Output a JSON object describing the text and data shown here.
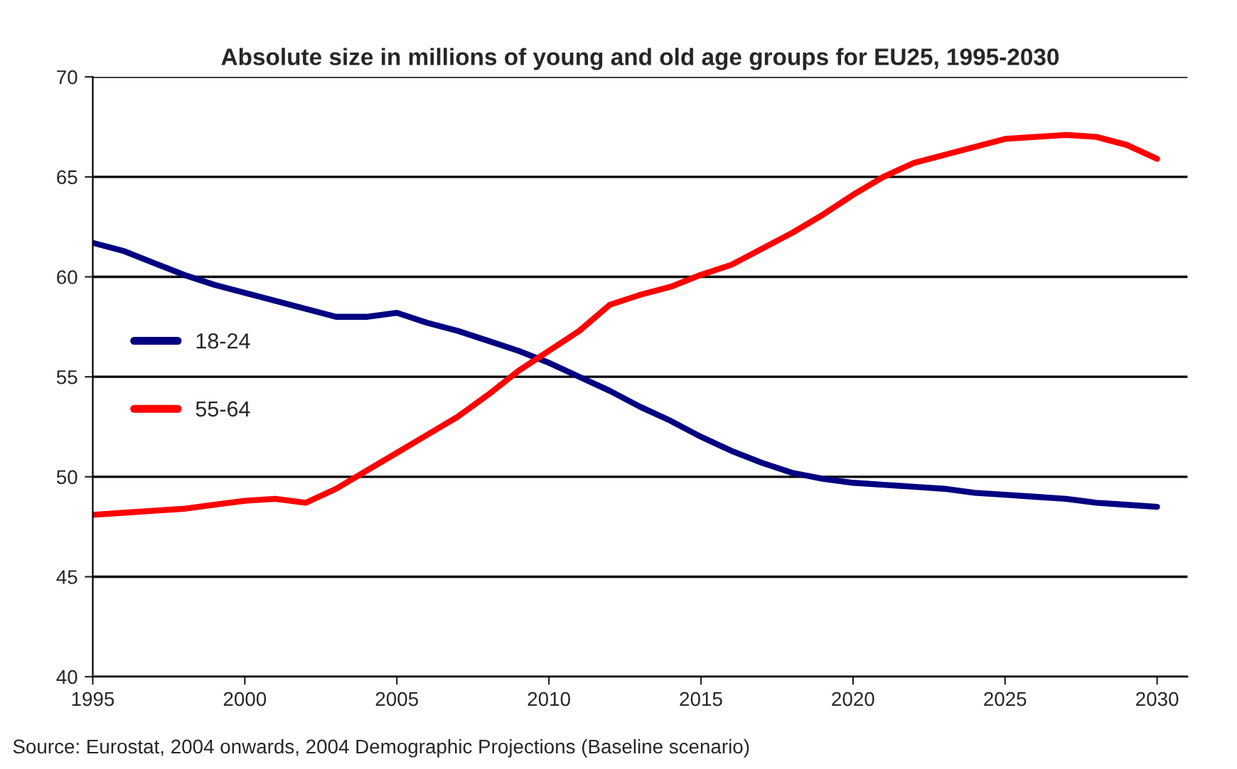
{
  "chart_data": {
    "type": "line",
    "title": "Absolute size in millions of young and old age groups for EU25, 1995-2030",
    "x": [
      1995,
      1996,
      1997,
      1998,
      1999,
      2000,
      2001,
      2002,
      2003,
      2004,
      2005,
      2006,
      2007,
      2008,
      2009,
      2010,
      2011,
      2012,
      2013,
      2014,
      2015,
      2016,
      2017,
      2018,
      2019,
      2020,
      2021,
      2022,
      2023,
      2024,
      2025,
      2026,
      2027,
      2028,
      2029,
      2030
    ],
    "series": [
      {
        "name": "18-24",
        "color": "#000080",
        "values": [
          61.7,
          61.3,
          60.7,
          60.1,
          59.6,
          59.2,
          58.8,
          58.4,
          58.0,
          58.0,
          58.2,
          57.7,
          57.3,
          56.8,
          56.3,
          55.7,
          55.0,
          54.3,
          53.5,
          52.8,
          52.0,
          51.3,
          50.7,
          50.2,
          49.9,
          49.7,
          49.6,
          49.5,
          49.4,
          49.2,
          49.1,
          49.0,
          48.9,
          48.7,
          48.6,
          48.5
        ]
      },
      {
        "name": "55-64",
        "color": "#ff0000",
        "values": [
          48.1,
          48.2,
          48.3,
          48.4,
          48.6,
          48.8,
          48.9,
          48.7,
          49.4,
          50.3,
          51.2,
          52.1,
          53.0,
          54.1,
          55.3,
          56.3,
          57.3,
          58.6,
          59.1,
          59.5,
          60.1,
          60.6,
          61.4,
          62.2,
          63.1,
          64.1,
          65.0,
          65.7,
          66.1,
          66.5,
          66.9,
          67.0,
          67.1,
          67.0,
          66.6,
          65.9
        ]
      }
    ],
    "xlim": [
      1995,
      2031
    ],
    "xticks": [
      1995,
      2000,
      2005,
      2010,
      2015,
      2020,
      2025,
      2030
    ],
    "ylim": [
      40,
      70
    ],
    "yticks": [
      40,
      45,
      50,
      55,
      60,
      65,
      70
    ],
    "grid": "y",
    "legend": "center left",
    "marker": "none",
    "line_style": "solid",
    "annotations": [
      "Source: Eurostat, 2004 onwards, 2004 Demographic Projections (Baseline scenario)"
    ]
  }
}
